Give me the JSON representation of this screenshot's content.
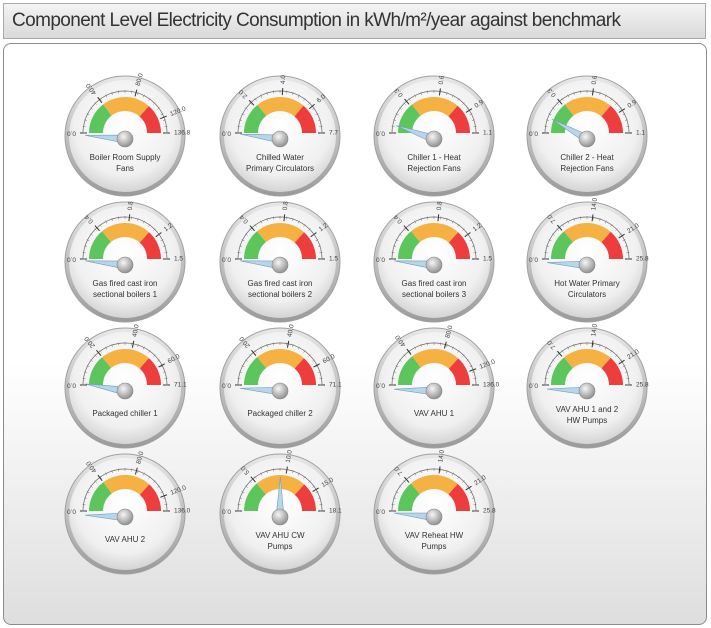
{
  "header": {
    "title": "Component Level Electricity Consumption in kWh/m²/year against benchmark"
  },
  "chart_data": [
    {
      "type": "gauge",
      "label_lines": [
        "Boiler Room Supply",
        "Fans"
      ],
      "min": 0,
      "max": 136.8,
      "ticks": [
        "0.0",
        "40.0",
        "80.0",
        "120.0"
      ],
      "max_label": "136.8",
      "value": 4,
      "bands": [
        {
          "from": 0,
          "to": 40,
          "color": "#5cc65c"
        },
        {
          "from": 40,
          "to": 100,
          "color": "#f5b142"
        },
        {
          "from": 100,
          "to": 136.8,
          "color": "#ee3d3d"
        }
      ]
    },
    {
      "type": "gauge",
      "label_lines": [
        "Chilled Water",
        "Primary Circulators"
      ],
      "min": 0,
      "max": 7.7,
      "ticks": [
        "0.0",
        "2.0",
        "4.0",
        "6.0"
      ],
      "max_label": "7.7",
      "value": 0.3,
      "bands": [
        {
          "from": 0,
          "to": 2.2,
          "color": "#5cc65c"
        },
        {
          "from": 2.2,
          "to": 5.6,
          "color": "#f5b142"
        },
        {
          "from": 5.6,
          "to": 7.7,
          "color": "#ee3d3d"
        }
      ]
    },
    {
      "type": "gauge",
      "label_lines": [
        "Chiller 1 - Heat",
        "Rejection Fans"
      ],
      "min": 0,
      "max": 1.1,
      "ticks": [
        "0.0",
        "0.3",
        "0.6",
        "0.9"
      ],
      "max_label": "1.1",
      "value": 0.12,
      "bands": [
        {
          "from": 0,
          "to": 0.32,
          "color": "#5cc65c"
        },
        {
          "from": 0.32,
          "to": 0.8,
          "color": "#f5b142"
        },
        {
          "from": 0.8,
          "to": 1.1,
          "color": "#ee3d3d"
        }
      ]
    },
    {
      "type": "gauge",
      "label_lines": [
        "Chiller 2 - Heat",
        "Rejection Fans"
      ],
      "min": 0,
      "max": 1.1,
      "ticks": [
        "0.0",
        "0.3",
        "0.6",
        "0.9"
      ],
      "max_label": "1.1",
      "value": 0.18,
      "bands": [
        {
          "from": 0,
          "to": 0.32,
          "color": "#5cc65c"
        },
        {
          "from": 0.32,
          "to": 0.8,
          "color": "#f5b142"
        },
        {
          "from": 0.8,
          "to": 1.1,
          "color": "#ee3d3d"
        }
      ]
    },
    {
      "type": "gauge",
      "label_lines": [
        "Gas fired cast iron",
        "sectional boilers 1"
      ],
      "min": 0,
      "max": 1.5,
      "ticks": [
        "0.0",
        "0.4",
        "0.8",
        "1.2"
      ],
      "max_label": "1.5",
      "value": 0.05,
      "bands": [
        {
          "from": 0,
          "to": 0.42,
          "color": "#5cc65c"
        },
        {
          "from": 0.42,
          "to": 1.1,
          "color": "#f5b142"
        },
        {
          "from": 1.1,
          "to": 1.5,
          "color": "#ee3d3d"
        }
      ]
    },
    {
      "type": "gauge",
      "label_lines": [
        "Gas fired cast iron",
        "sectional boilers 2"
      ],
      "min": 0,
      "max": 1.5,
      "ticks": [
        "0.0",
        "0.4",
        "0.8",
        "1.2"
      ],
      "max_label": "1.5",
      "value": 0.05,
      "bands": [
        {
          "from": 0,
          "to": 0.42,
          "color": "#5cc65c"
        },
        {
          "from": 0.42,
          "to": 1.1,
          "color": "#f5b142"
        },
        {
          "from": 1.1,
          "to": 1.5,
          "color": "#ee3d3d"
        }
      ]
    },
    {
      "type": "gauge",
      "label_lines": [
        "Gas fired cast iron",
        "sectional boilers 3"
      ],
      "min": 0,
      "max": 1.5,
      "ticks": [
        "0.0",
        "0.4",
        "0.8",
        "1.2"
      ],
      "max_label": "1.5",
      "value": 0.05,
      "bands": [
        {
          "from": 0,
          "to": 0.42,
          "color": "#5cc65c"
        },
        {
          "from": 0.42,
          "to": 1.1,
          "color": "#f5b142"
        },
        {
          "from": 1.1,
          "to": 1.5,
          "color": "#ee3d3d"
        }
      ]
    },
    {
      "type": "gauge",
      "label_lines": [
        "Hot Water Primary",
        "Circulators"
      ],
      "min": 0,
      "max": 25.8,
      "ticks": [
        "0.0",
        "7.0",
        "14.0",
        "21.0"
      ],
      "max_label": "25.8",
      "value": 0.5,
      "bands": [
        {
          "from": 0,
          "to": 7.2,
          "color": "#5cc65c"
        },
        {
          "from": 7.2,
          "to": 18.8,
          "color": "#f5b142"
        },
        {
          "from": 18.8,
          "to": 25.8,
          "color": "#ee3d3d"
        }
      ]
    },
    {
      "type": "gauge",
      "label_lines": [
        "Packaged chiller 1"
      ],
      "min": 0,
      "max": 71.1,
      "ticks": [
        "0.0",
        "20.0",
        "40.0",
        "60.0"
      ],
      "max_label": "71.1",
      "value": 4,
      "bands": [
        {
          "from": 0,
          "to": 20,
          "color": "#5cc65c"
        },
        {
          "from": 20,
          "to": 52,
          "color": "#f5b142"
        },
        {
          "from": 52,
          "to": 71.1,
          "color": "#ee3d3d"
        }
      ]
    },
    {
      "type": "gauge",
      "label_lines": [
        "Packaged chiller 2"
      ],
      "min": 0,
      "max": 71.1,
      "ticks": [
        "0.0",
        "20.0",
        "40.0",
        "60.0"
      ],
      "max_label": "71.1",
      "value": 1.5,
      "bands": [
        {
          "from": 0,
          "to": 20,
          "color": "#5cc65c"
        },
        {
          "from": 20,
          "to": 52,
          "color": "#f5b142"
        },
        {
          "from": 52,
          "to": 71.1,
          "color": "#ee3d3d"
        }
      ]
    },
    {
      "type": "gauge",
      "label_lines": [
        "VAV AHU 1"
      ],
      "min": 0,
      "max": 136.0,
      "ticks": [
        "0.0",
        "40.0",
        "80.0",
        "120.0"
      ],
      "max_label": "136.0",
      "value": 2,
      "bands": [
        {
          "from": 0,
          "to": 40,
          "color": "#5cc65c"
        },
        {
          "from": 40,
          "to": 100,
          "color": "#f5b142"
        },
        {
          "from": 100,
          "to": 136,
          "color": "#ee3d3d"
        }
      ]
    },
    {
      "type": "gauge",
      "label_lines": [
        "VAV AHU 1 and 2",
        "HW Pumps"
      ],
      "min": 0,
      "max": 25.8,
      "ticks": [
        "0.0",
        "7.0",
        "14.0",
        "21.0"
      ],
      "max_label": "25.8",
      "value": 0.4,
      "bands": [
        {
          "from": 0,
          "to": 7.2,
          "color": "#5cc65c"
        },
        {
          "from": 7.2,
          "to": 18.8,
          "color": "#f5b142"
        },
        {
          "from": 18.8,
          "to": 25.8,
          "color": "#ee3d3d"
        }
      ]
    },
    {
      "type": "gauge",
      "label_lines": [
        "VAV AHU 2"
      ],
      "min": 0,
      "max": 136.0,
      "ticks": [
        "0.0",
        "40.0",
        "80.0",
        "120.0"
      ],
      "max_label": "136.0",
      "value": 2,
      "bands": [
        {
          "from": 0,
          "to": 40,
          "color": "#5cc65c"
        },
        {
          "from": 40,
          "to": 100,
          "color": "#f5b142"
        },
        {
          "from": 100,
          "to": 136,
          "color": "#ee3d3d"
        }
      ]
    },
    {
      "type": "gauge",
      "label_lines": [
        "VAV AHU CW",
        "Pumps"
      ],
      "min": 0,
      "max": 18.1,
      "ticks": [
        "0.0",
        "5.0",
        "10.0",
        "15.0"
      ],
      "max_label": "18.1",
      "value": 9.1,
      "bands": [
        {
          "from": 0,
          "to": 5,
          "color": "#5cc65c"
        },
        {
          "from": 5,
          "to": 13.3,
          "color": "#f5b142"
        },
        {
          "from": 13.3,
          "to": 18.1,
          "color": "#ee3d3d"
        }
      ]
    },
    {
      "type": "gauge",
      "label_lines": [
        "VAV Reheat HW",
        "Pumps"
      ],
      "min": 0,
      "max": 25.8,
      "ticks": [
        "0.0",
        "7.0",
        "14.0",
        "21.0"
      ],
      "max_label": "25.8",
      "value": 0.8,
      "bands": [
        {
          "from": 0,
          "to": 7.2,
          "color": "#5cc65c"
        },
        {
          "from": 7.2,
          "to": 18.8,
          "color": "#f5b142"
        },
        {
          "from": 18.8,
          "to": 25.8,
          "color": "#ee3d3d"
        }
      ]
    }
  ]
}
